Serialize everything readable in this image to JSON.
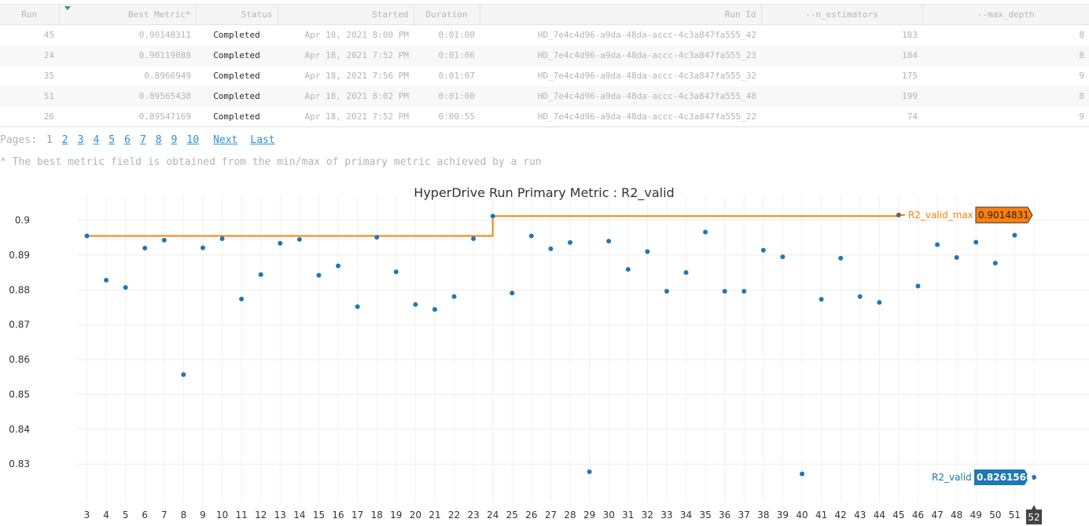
{
  "table": {
    "columns": [
      "Run",
      "Best Metric*",
      "Status",
      "Started",
      "Duration",
      "Run Id",
      "--n_estimators",
      "--max_depth"
    ],
    "rows": [
      [
        "45",
        "0.90148311",
        "Completed",
        "Apr 18, 2021 8:00 PM",
        "0:01:00",
        "HD_7e4c4d96-a9da-48da-accc-4c3a847fa555_42",
        "183",
        "8"
      ],
      [
        "24",
        "0.90119088",
        "Completed",
        "Apr 18, 2021 7:52 PM",
        "0:01:06",
        "HD_7e4c4d96-a9da-48da-accc-4c3a847fa555_23",
        "184",
        "8"
      ],
      [
        "35",
        "0.8966949",
        "Completed",
        "Apr 18, 2021 7:56 PM",
        "0:01:07",
        "HD_7e4c4d96-a9da-48da-accc-4c3a847fa555_32",
        "175",
        "9"
      ],
      [
        "51",
        "0.89565438",
        "Completed",
        "Apr 18, 2021 8:02 PM",
        "0:01:00",
        "HD_7e4c4d96-a9da-48da-accc-4c3a847fa555_48",
        "199",
        "8"
      ],
      [
        "26",
        "0.89547169",
        "Completed",
        "Apr 18, 2021 7:52 PM",
        "0:00:55",
        "HD_7e4c4d96-a9da-48da-accc-4c3a847fa555_22",
        "74",
        "9"
      ]
    ]
  },
  "pagination": {
    "label": "Pages:",
    "current": "1",
    "pages": [
      "2",
      "3",
      "4",
      "5",
      "6",
      "7",
      "8",
      "9",
      "10"
    ],
    "next": "Next",
    "last": "Last"
  },
  "footnote": "* The best metric field is obtained from the min/max of primary metric achieved by a run",
  "colors": {
    "accent": "#1f77b4",
    "max_line": "#ff7f0e",
    "sort_arrow": "#1a9e7a",
    "link": "#2f8fd6"
  },
  "chart_data": {
    "type": "scatter",
    "title": "HyperDrive Run Primary Metric : R2_valid",
    "xlabel": "",
    "ylabel": "",
    "xlim": [
      3,
      52
    ],
    "ylim": [
      0.8235,
      0.9035
    ],
    "y_ticks": [
      "0.83",
      "0.84",
      "0.85",
      "0.86",
      "0.87",
      "0.88",
      "0.89",
      "0.9"
    ],
    "x_ticks": [
      "3",
      "4",
      "5",
      "6",
      "7",
      "8",
      "9",
      "10",
      "11",
      "12",
      "13",
      "14",
      "15",
      "16",
      "17",
      "18",
      "19",
      "20",
      "21",
      "22",
      "23",
      "24",
      "25",
      "26",
      "27",
      "28",
      "29",
      "30",
      "31",
      "32",
      "33",
      "34",
      "35",
      "36",
      "37",
      "38",
      "39",
      "40",
      "41",
      "42",
      "43",
      "44",
      "45",
      "46",
      "47",
      "48",
      "49",
      "50",
      "51",
      "52"
    ],
    "grid": true,
    "series": [
      {
        "name": "R2_valid",
        "color": "#1f77b4",
        "x": [
          3,
          4,
          5,
          6,
          7,
          8,
          9,
          10,
          11,
          12,
          13,
          14,
          15,
          16,
          17,
          18,
          19,
          20,
          21,
          22,
          23,
          24,
          25,
          26,
          27,
          28,
          29,
          30,
          31,
          32,
          33,
          34,
          35,
          36,
          37,
          38,
          39,
          40,
          41,
          42,
          43,
          44,
          45,
          46,
          47,
          48,
          49,
          50,
          51,
          52
        ],
        "y": [
          0.8955,
          0.8828,
          0.8807,
          0.892,
          0.8943,
          0.8557,
          0.8921,
          0.8947,
          0.8774,
          0.8844,
          0.8934,
          0.8945,
          0.8842,
          0.8869,
          0.8752,
          0.8951,
          0.8852,
          0.8758,
          0.8744,
          0.8781,
          0.8947,
          0.9012,
          0.8791,
          0.8955,
          0.8918,
          0.8936,
          0.8278,
          0.894,
          0.8859,
          0.891,
          0.8796,
          0.885,
          0.8966,
          0.8796,
          0.8796,
          0.8914,
          0.8895,
          0.8272,
          0.8773,
          0.8891,
          0.8781,
          0.8764,
          0.9015,
          0.8811,
          0.893,
          0.8893,
          0.8937,
          0.8877,
          0.8957,
          0.8262
        ]
      },
      {
        "name": "R2_valid_max",
        "color": "#ff7f0e",
        "line": "step",
        "x": [
          3,
          24,
          45
        ],
        "y": [
          0.8955,
          0.9012,
          0.9015
        ]
      }
    ],
    "annotations": [
      {
        "label": "R2_valid_max",
        "value": "0.9014831",
        "x": 45
      },
      {
        "label": "R2_valid",
        "value": "0.8261566",
        "x": 52
      },
      {
        "label": "",
        "value": "52",
        "x": 52
      }
    ]
  }
}
